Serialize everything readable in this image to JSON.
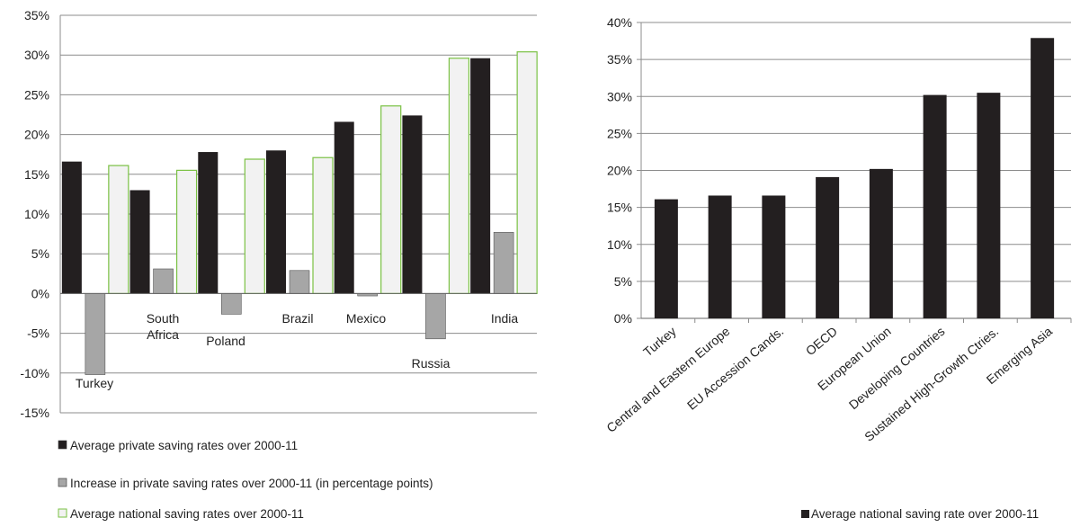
{
  "chart_data": [
    {
      "type": "bar",
      "title": "",
      "xlabel": "",
      "ylabel": "",
      "ylim": [
        -15,
        35
      ],
      "y_ticks": [
        "-15%",
        "-10%",
        "-5%",
        "0%",
        "5%",
        "10%",
        "15%",
        "20%",
        "25%",
        "30%",
        "35%"
      ],
      "grid": true,
      "categories": [
        "Turkey",
        "South\nAfrica",
        "Poland",
        "Brazil",
        "Mexico",
        "Russia",
        "India"
      ],
      "series": [
        {
          "name": "Average private saving rates over 2000-11",
          "color": "#231f20",
          "values": [
            16.6,
            13.0,
            17.8,
            18.0,
            21.6,
            22.4,
            29.6
          ]
        },
        {
          "name": "Increase in private saving rates over 2000-11 (in percentage points)",
          "color": "#a6a6a6",
          "values": [
            -10.2,
            3.1,
            -2.6,
            2.9,
            -0.3,
            -5.7,
            7.7
          ]
        },
        {
          "name": "Average national saving rates over 2000-11",
          "color": "#f2f2f2",
          "edge_color": "#7ac143",
          "values": [
            16.1,
            15.5,
            16.9,
            17.1,
            23.6,
            29.6,
            30.4
          ]
        }
      ],
      "legend_position": "bottom"
    },
    {
      "type": "bar",
      "title": "",
      "xlabel": "",
      "ylabel": "",
      "ylim": [
        0,
        40
      ],
      "y_ticks": [
        "0%",
        "5%",
        "10%",
        "15%",
        "20%",
        "25%",
        "30%",
        "35%",
        "40%"
      ],
      "grid": true,
      "categories": [
        "Turkey",
        "Central and Eastern Europe",
        "EU Accession Cands.",
        "OECD",
        "European Union",
        "Developing Countries",
        "Sustained High-Growth Ctries.",
        "Emerging Asia"
      ],
      "series": [
        {
          "name": "Average national saving rate over 2000-11",
          "color": "#231f20",
          "values": [
            16.1,
            16.6,
            16.6,
            19.1,
            20.2,
            30.2,
            30.5,
            37.9
          ]
        }
      ],
      "legend_position": "bottom"
    }
  ]
}
